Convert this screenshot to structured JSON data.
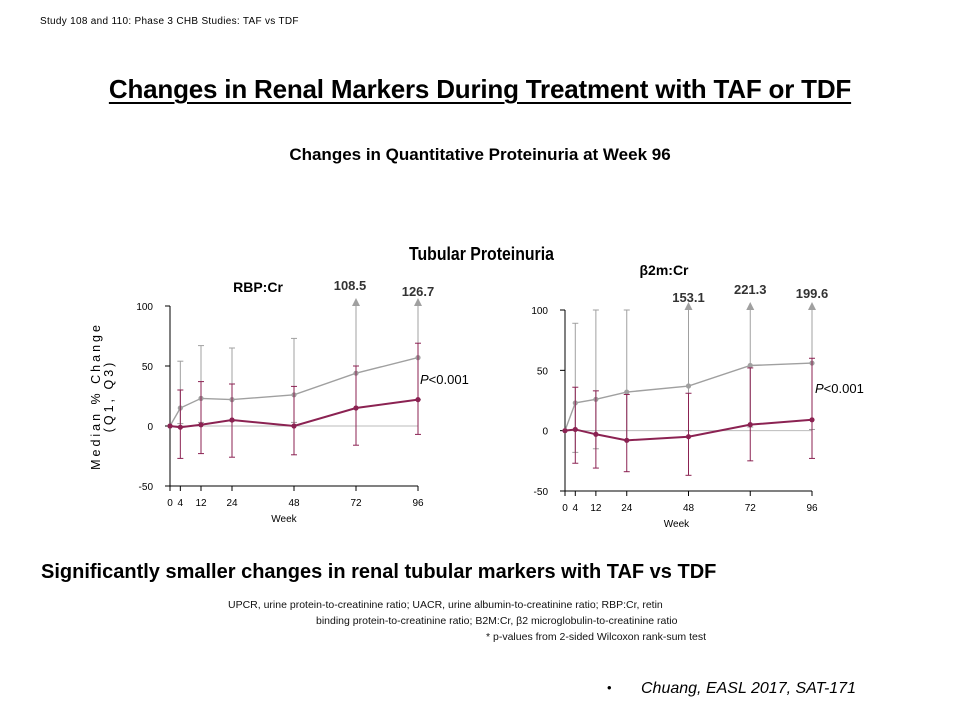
{
  "header_note": "Study 108 and 110: Phase 3 CHB Studies: TAF vs TDF",
  "title": "Changes in Renal Markers During Treatment with TAF or TDF",
  "subtitle": "Changes in Quantitative Proteinuria at Week 96",
  "group_title": "Tubular Proteinuria",
  "conclusion": "Significantly smaller changes in renal tubular markers with TAF vs TDF",
  "footnotes": [
    "UPCR, urine protein-to-creatinine ratio; UACR, urine albumin-to-creatinine ratio; RBP:Cr, retin",
    "binding protein-to-creatinine ratio; B2M:Cr, β2 microglobulin-to-creatinine ratio",
    "* p-values from 2-sided Wilcoxon rank-sum test"
  ],
  "bullet": "•",
  "citation": "Chuang, EASL 2017, SAT-171",
  "colors": {
    "tdf": "#a0a0a0",
    "taf": "#8b2252",
    "axis": "#000000",
    "zero": "#bbbbbb"
  },
  "chart_data": [
    {
      "type": "line",
      "title": "RBP:Cr",
      "xlabel": "Week",
      "ylabel": "Median % Change (Q1, Q3)",
      "x": [
        0,
        4,
        12,
        24,
        48,
        72,
        96
      ],
      "ylim": [
        -50,
        100
      ],
      "yticks": [
        -50,
        0,
        50,
        100
      ],
      "pvalue": "P<0.001",
      "series": [
        {
          "color": "#a0a0a0",
          "values": [
            0,
            15,
            23,
            22,
            26,
            44,
            57
          ],
          "q1": [
            0,
            2,
            3,
            4,
            3,
            15,
            22
          ],
          "q3": [
            0,
            54,
            67,
            65,
            73,
            108.5,
            126.7
          ],
          "offscale_labels": [
            null,
            null,
            null,
            null,
            null,
            "108.5",
            "126.7"
          ]
        },
        {
          "color": "#8b2252",
          "values": [
            0,
            -1,
            1,
            5,
            0,
            15,
            22
          ],
          "q1": [
            0,
            -27,
            -23,
            -26,
            -24,
            -16,
            -7
          ],
          "q3": [
            0,
            30,
            37,
            35,
            33,
            50,
            69
          ],
          "offscale_labels": [
            null,
            null,
            null,
            null,
            null,
            null,
            null
          ]
        }
      ]
    },
    {
      "type": "line",
      "title": "β2m:Cr",
      "xlabel": "Week",
      "ylabel": "",
      "x": [
        0,
        4,
        12,
        24,
        48,
        72,
        96
      ],
      "ylim": [
        -50,
        100
      ],
      "yticks": [
        -50,
        0,
        50,
        100
      ],
      "pvalue": "P<0.001",
      "series": [
        {
          "color": "#a0a0a0",
          "values": [
            0,
            23,
            26,
            32,
            37,
            54,
            56
          ],
          "q1": [
            0,
            -18,
            -15,
            -8,
            0,
            3,
            1
          ],
          "q3": [
            0,
            89,
            101,
            101,
            153.1,
            221.3,
            199.6
          ],
          "offscale_labels": [
            null,
            null,
            null,
            null,
            "153.1",
            "221.3",
            "199.6"
          ]
        },
        {
          "color": "#8b2252",
          "values": [
            0,
            1,
            -3,
            -8,
            -5,
            5,
            9
          ],
          "q1": [
            0,
            -27,
            -31,
            -34,
            -37,
            -25,
            -23
          ],
          "q3": [
            0,
            36,
            33,
            30,
            31,
            52,
            60
          ],
          "offscale_labels": [
            null,
            null,
            null,
            null,
            null,
            null,
            null
          ]
        }
      ]
    }
  ]
}
